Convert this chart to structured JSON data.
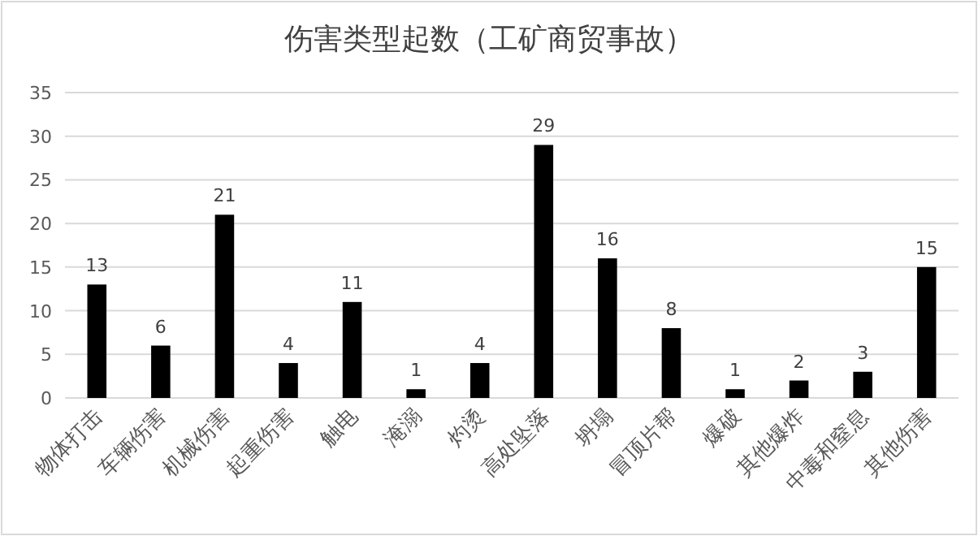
{
  "chart_data": {
    "type": "bar",
    "title": "伤害类型起数（工矿商贸事故）",
    "categories": [
      "物体打击",
      "车辆伤害",
      "机械伤害",
      "起重伤害",
      "触电",
      "淹溺",
      "灼烫",
      "高处坠落",
      "坍塌",
      "冒顶片帮",
      "爆破",
      "其他爆炸",
      "中毒和窒息",
      "其他伤害"
    ],
    "values": [
      13,
      6,
      21,
      4,
      11,
      1,
      4,
      29,
      16,
      8,
      1,
      2,
      3,
      15
    ],
    "color": "#000000",
    "ylim": [
      0,
      35
    ],
    "yticks": [
      0,
      5,
      10,
      15,
      20,
      25,
      30,
      35
    ],
    "grid": "y",
    "data_labels": true
  }
}
